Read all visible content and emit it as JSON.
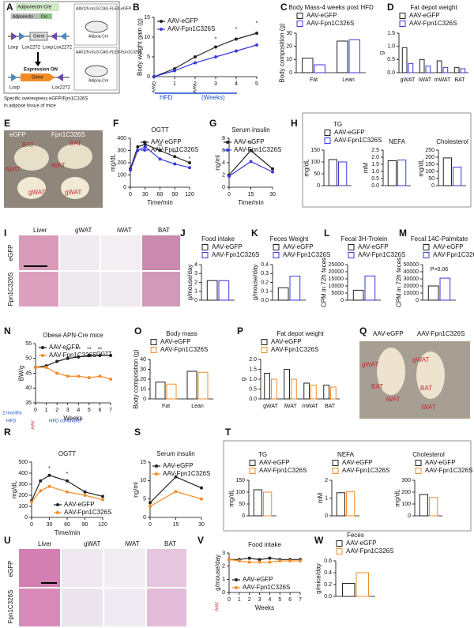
{
  "panels": {
    "A": {
      "letter": "A",
      "cre": "Adiponectin-Cre",
      "promoter": "Adiponectin",
      "cre_gene": "Cre",
      "gene_off": "Gene",
      "loxp1": "Loxp",
      "lox2272a": "Lox2272",
      "loxp2": "Loxp",
      "lox2272b": "Lox2272",
      "expression": "Expression ON",
      "gene_on": "Gene",
      "loxp3": "Loxp",
      "lox2272c": "Lox2272",
      "virus1": "AAV2/9-mU3-CAG-FLEX-eGFP",
      "mouse1": "Adipoq-Cre",
      "virus2": "AAV2/9-mU3-CAG-FLEX-Fpn1C326S",
      "mouse2": "Adipoq-Cre",
      "caption1": "Specific overexpress eGFP/Fpn1C326S",
      "caption2": "in adipose tissue of mice"
    },
    "E": {
      "letter": "E",
      "left": "eGFP",
      "right": "Fpn1C326S",
      "bat1": "BAT",
      "bat2": "BAT",
      "iwat1": "iWAT",
      "iwat2": "iWAT",
      "gwat1": "gWAT",
      "gwat2": "gWAT"
    },
    "I": {
      "letter": "I",
      "columns": [
        "Liver",
        "gWAT",
        "iWAT",
        "BAT"
      ],
      "rows": [
        "eGFP",
        "Fpn1C326S"
      ]
    },
    "Q": {
      "letter": "Q",
      "left": "AAV-eGFP",
      "right": "AAV-Fpn1C326S",
      "gwat1": "gWAT",
      "gwat2": "gWAT",
      "bat1": "BAT",
      "bat2": "BAT",
      "iwat1": "iWAT",
      "iwat2": "iWAT"
    },
    "U": {
      "letter": "U",
      "columns": [
        "Liver",
        "gWAT",
        "iWAT",
        "BAT"
      ],
      "rows": [
        "eGFP",
        "Fpn1C326S"
      ]
    }
  },
  "axis_notes": {
    "b_aav1": "AAV",
    "b_aav2": "AAV",
    "b_hfd": "HFD",
    "b_weeks": "(Weeks)",
    "n_months": "2 months",
    "n_hfd": "HFD",
    "n_aav": "AAV",
    "n_continued": "HFD continued",
    "v_aav": "AAV"
  },
  "chart_data": [
    {
      "panel": "B",
      "type": "line",
      "ylabel": "Body weight gain (g)",
      "x": [
        0,
        1,
        2,
        3,
        4,
        5
      ],
      "xlim": [
        0,
        5
      ],
      "xticks": [
        0,
        1,
        2,
        3,
        4,
        5
      ],
      "ylim": [
        0,
        15
      ],
      "yticks": [
        0,
        5,
        10,
        15
      ],
      "legend": "upper left",
      "series": [
        {
          "name": "AAV-eGFP",
          "color": "#222222",
          "values": [
            0,
            2,
            5,
            7.5,
            9.5,
            11
          ]
        },
        {
          "name": "AAV-Fpn1C326S",
          "color": "#3a3ae0",
          "values": [
            0,
            1.5,
            3.5,
            5,
            6.5,
            8
          ]
        }
      ],
      "annotations": [
        {
          "text": "*",
          "x": 3,
          "y": 9.5
        },
        {
          "text": "*",
          "x": 4,
          "y": 12
        },
        {
          "text": "*",
          "x": 5,
          "y": 13.5
        }
      ]
    },
    {
      "panel": "C",
      "type": "bar",
      "title": "Body Mass-4 weeks post HFD",
      "ylabel": "Body composition (g)",
      "categories": [
        "Fat",
        "Lean"
      ],
      "ylim": [
        0,
        30
      ],
      "yticks": [
        0,
        10,
        20,
        30
      ],
      "legend": "top",
      "series": [
        {
          "name": "AAV-eGFP",
          "color": "#222222",
          "values": [
            11,
            24
          ]
        },
        {
          "name": "AAV-Fpn1C326S",
          "color": "#3a3ae0",
          "values": [
            6,
            25
          ]
        }
      ]
    },
    {
      "panel": "D",
      "type": "bar",
      "title": "Fat depot weight",
      "ylabel": "g",
      "categories": [
        "gWAT",
        "iWAT",
        "mWAT",
        "BAT"
      ],
      "ylim": [
        0,
        1.5
      ],
      "yticks": [
        {
          "value": 0,
          "label": "0.0"
        },
        0.5,
        {
          "value": 1,
          "label": "1.0"
        },
        1.5
      ],
      "legend": "top",
      "series": [
        {
          "name": "AAV-eGFP",
          "color": "#222222",
          "values": [
            0.95,
            0.5,
            0.45,
            0.2
          ]
        },
        {
          "name": "AAV-Fpn1C326S",
          "color": "#3a3ae0",
          "values": [
            0.35,
            0.25,
            0.2,
            0.15
          ]
        }
      ]
    },
    {
      "panel": "F",
      "type": "line",
      "title": "OGTT",
      "ylabel": "mg/dL",
      "xlabel": "Time/min",
      "x": [
        0,
        15,
        30,
        60,
        90,
        120
      ],
      "xlim": [
        0,
        120
      ],
      "xticks": [
        0,
        30,
        60,
        90,
        120
      ],
      "ylim": [
        0,
        400
      ],
      "yticks": [
        0,
        100,
        200,
        300,
        400
      ],
      "legend": "upper right",
      "series": [
        {
          "name": "AAV-eGFP",
          "color": "#222222",
          "values": [
            150,
            330,
            350,
            300,
            250,
            200
          ]
        },
        {
          "name": "AAV-Fpn1C326S",
          "color": "#3a3ae0",
          "values": [
            140,
            300,
            330,
            230,
            190,
            160
          ]
        }
      ],
      "annotations": [
        {
          "text": "**",
          "x": 60,
          "y": 330
        },
        {
          "text": "**",
          "x": 90,
          "y": 280
        },
        {
          "text": "*",
          "x": 120,
          "y": 230
        }
      ]
    },
    {
      "panel": "G",
      "type": "line",
      "title": "Serum insulin",
      "ylabel": "ng/ml",
      "xlabel": "Time/min",
      "x": [
        0,
        15,
        30
      ],
      "xlim": [
        0,
        30
      ],
      "xticks": [
        0,
        15,
        30
      ],
      "ylim": [
        0,
        8
      ],
      "yticks": [
        0,
        2,
        4,
        6,
        8
      ],
      "legend": "upper right",
      "series": [
        {
          "name": "AAV-eGFP",
          "color": "#222222",
          "values": [
            2,
            6,
            3
          ]
        },
        {
          "name": "AAV-Fpn1C326S",
          "color": "#3a3ae0",
          "values": [
            1.8,
            4.2,
            2.5
          ]
        }
      ],
      "annotations": [
        {
          "text": "*",
          "x": 15,
          "y": 7
        }
      ]
    },
    {
      "panel": "H",
      "type": "bar",
      "title": "TG",
      "ylabel": "mg/dL",
      "categories": [
        null
      ],
      "ylim": [
        0,
        150
      ],
      "yticks": [
        0,
        50,
        100,
        150
      ],
      "legend": "top",
      "series": [
        {
          "name": "AAV-eGFP",
          "color": "#222222",
          "values": [
            110
          ]
        },
        {
          "name": "AAV-Fpn1C326S",
          "color": "#3a3ae0",
          "values": [
            100
          ]
        }
      ]
    },
    {
      "type": "bar",
      "title": "NEFA",
      "ylabel": "mM",
      "categories": [
        null
      ],
      "ylim": [
        0,
        2.5
      ],
      "yticks": [
        {
          "value": 0,
          "label": "0.0"
        },
        0.5,
        {
          "value": 1,
          "label": "1.0"
        },
        1.5,
        {
          "value": 2,
          "label": "2.0"
        },
        2.5
      ],
      "series": [
        {
          "color": "#222222",
          "values": [
            1.75
          ]
        },
        {
          "color": "#3a3ae0",
          "values": [
            1.8
          ]
        }
      ]
    },
    {
      "type": "bar",
      "title": "Cholesterol",
      "ylabel": "mg/dL",
      "categories": [
        null
      ],
      "ylim": [
        0,
        250
      ],
      "yticks": [
        0,
        50,
        100,
        150,
        200,
        250
      ],
      "series": [
        {
          "color": "#222222",
          "values": [
            195
          ]
        },
        {
          "color": "#3a3ae0",
          "values": [
            130
          ]
        }
      ]
    },
    {
      "panel": "J",
      "type": "bar",
      "title": "Food intake",
      "ylabel": "g/mouse/day",
      "categories": [
        null
      ],
      "ylim": [
        0,
        4
      ],
      "yticks": [
        0,
        1,
        2,
        3,
        4
      ],
      "legend": "top",
      "series": [
        {
          "name": "AAV-eGFP",
          "color": "#222222",
          "values": [
            2.2
          ]
        },
        {
          "name": "AAV-Fpn1C326S",
          "color": "#3a3ae0",
          "values": [
            2.2
          ]
        }
      ]
    },
    {
      "panel": "K",
      "type": "bar",
      "title": "Feces Weight",
      "ylabel": "g/mouse/day",
      "categories": [
        null
      ],
      "ylim": [
        0,
        0.4
      ],
      "yticks": [
        {
          "value": 0,
          "label": "0.0"
        },
        0.1,
        0.2,
        0.3,
        0.4
      ],
      "legend": "top",
      "series": [
        {
          "name": "AAV-eGFP",
          "color": "#222222",
          "values": [
            0.14
          ]
        },
        {
          "name": "AAV-Fpn1C326S",
          "color": "#3a3ae0",
          "values": [
            0.27
          ]
        }
      ]
    },
    {
      "panel": "L",
      "type": "bar",
      "title": "Fecal 3H-Trolein",
      "ylabel": "CPM in 72h feces",
      "categories": [
        null
      ],
      "ylim": [
        0,
        25000
      ],
      "yticks": [
        0,
        5000,
        10000,
        15000,
        20000,
        25000
      ],
      "legend": "top",
      "series": [
        {
          "name": "AAV-eGFP",
          "color": "#222222",
          "values": [
            7000
          ]
        },
        {
          "name": "AAV-Fpn1C326S",
          "color": "#3a3ae0",
          "values": [
            17000
          ]
        }
      ]
    },
    {
      "panel": "M",
      "type": "bar",
      "title": "Fecal 14C-Palmitate",
      "ylabel": "CPM in 72h feces",
      "categories": [
        null
      ],
      "ylim": [
        0,
        50000
      ],
      "yticks": [
        0,
        10000,
        20000,
        30000,
        40000,
        50000
      ],
      "legend": "top",
      "series": [
        {
          "name": "AAV-eGFP",
          "color": "#222222",
          "values": [
            20000
          ]
        },
        {
          "name": "AAV-Fpn1C326S",
          "color": "#3a3ae0",
          "values": [
            31000
          ]
        }
      ],
      "annotations": [
        {
          "text": "P=0.06",
          "x": 0,
          "y": 43000
        }
      ]
    },
    {
      "panel": "N",
      "type": "line",
      "title": "Obese APN-Cre mice",
      "ylabel": "BW/g",
      "xlabel": "Weeks",
      "x": [
        0,
        1,
        2,
        3,
        4,
        5,
        6,
        7
      ],
      "xlim": [
        0,
        7
      ],
      "xticks": [
        0,
        1,
        2,
        3,
        4,
        5,
        6,
        7
      ],
      "ylim": [
        35,
        55
      ],
      "yticks": [
        35,
        40,
        45,
        50,
        55
      ],
      "legend": "upper left",
      "series": [
        {
          "name": "AAV-eGFP",
          "color": "#222222",
          "values": [
            47,
            47.5,
            49,
            50,
            50.5,
            51,
            51,
            51
          ]
        },
        {
          "name": "AAV-Fpn1C326S",
          "color": "#f28c28",
          "values": [
            47,
            47,
            45,
            44,
            44,
            43.5,
            44,
            43
          ]
        }
      ],
      "annotations": [
        {
          "text": "**",
          "x": 3,
          "y": 52.5
        },
        {
          "text": "**",
          "x": 4,
          "y": 53
        },
        {
          "text": "**",
          "x": 5,
          "y": 53
        },
        {
          "text": "**",
          "x": 6,
          "y": 53
        },
        {
          "text": "OGTT",
          "x": 6.4,
          "y": 51.5,
          "color": "#f28c28"
        }
      ]
    },
    {
      "panel": "O",
      "type": "bar",
      "title": "Body mass",
      "ylabel": "Body composition (g)",
      "categories": [
        "Fat",
        "Lean"
      ],
      "ylim": [
        0,
        40
      ],
      "yticks": [
        0,
        10,
        20,
        30,
        40
      ],
      "legend": "top",
      "series": [
        {
          "name": "AAV-eGFP",
          "color": "#222222",
          "values": [
            17,
            28
          ]
        },
        {
          "name": "AAV-Fpn1C326S",
          "color": "#f28c28",
          "values": [
            15,
            27
          ]
        }
      ]
    },
    {
      "panel": "P",
      "type": "bar",
      "title": "Fat depot weight",
      "ylabel": "g",
      "categories": [
        "gWAT",
        "iWAT",
        "mWAT",
        "BAT"
      ],
      "ylim": [
        0,
        2
      ],
      "yticks": [
        {
          "value": 0,
          "label": "0.0"
        },
        0.5,
        {
          "value": 1,
          "label": "1.0"
        },
        1.5,
        {
          "value": 2,
          "label": "2.0"
        }
      ],
      "legend": "top",
      "series": [
        {
          "name": "AAV-eGFP",
          "color": "#222222",
          "values": [
            1.3,
            1.5,
            0.8,
            0.7
          ]
        },
        {
          "name": "AAV-Fpn1C326S",
          "color": "#f28c28",
          "values": [
            1.0,
            1.0,
            0.7,
            0.6
          ]
        }
      ]
    },
    {
      "panel": "R",
      "type": "line",
      "title": "OGTT",
      "ylabel": "mg/dL",
      "xlabel": "Time/min",
      "x": [
        0,
        15,
        30,
        60,
        90,
        120
      ],
      "xlim": [
        0,
        120
      ],
      "xticks": [
        0,
        30,
        60,
        90,
        120
      ],
      "ylim": [
        0,
        500
      ],
      "yticks": [
        0,
        100,
        200,
        300,
        400,
        500
      ],
      "legend": "lower right",
      "series": [
        {
          "name": "AAV-eGFP",
          "color": "#222222",
          "values": [
            150,
            330,
            380,
            330,
            230,
            190
          ]
        },
        {
          "name": "AAV-Fpn1C326S",
          "color": "#f28c28",
          "values": [
            140,
            240,
            280,
            230,
            200,
            160
          ]
        }
      ],
      "annotations": [
        {
          "text": "*",
          "x": 30,
          "y": 440
        },
        {
          "text": "*",
          "x": 60,
          "y": 390
        }
      ]
    },
    {
      "panel": "S",
      "type": "line",
      "title": "Serum insulin",
      "ylabel": "ng/ml",
      "x": [
        0,
        15,
        30
      ],
      "xlim": [
        0,
        30
      ],
      "xticks": [
        0,
        15,
        30
      ],
      "ylim": [
        0,
        15
      ],
      "yticks": [
        0,
        5,
        10,
        15
      ],
      "legend": "upper right",
      "series": [
        {
          "name": "AAV-eGFP",
          "color": "#222222",
          "values": [
            4,
            11,
            8
          ]
        },
        {
          "name": "AAV-Fpn1C326S",
          "color": "#f28c28",
          "values": [
            3,
            7,
            5
          ]
        }
      ]
    },
    {
      "panel": "T",
      "type": "bar",
      "title": "TG",
      "ylabel": "mg/dL",
      "categories": [
        null
      ],
      "ylim": [
        0,
        150
      ],
      "yticks": [
        0,
        50,
        100,
        150
      ],
      "legend": "top",
      "series": [
        {
          "name": "AAV-eGFP",
          "color": "#222222",
          "values": [
            110
          ]
        },
        {
          "name": "AAV-Fpn1C326S",
          "color": "#f28c28",
          "values": [
            100
          ]
        }
      ]
    },
    {
      "type": "bar",
      "title": "NEFA",
      "ylabel": "mM",
      "categories": [
        null
      ],
      "ylim": [
        0,
        2
      ],
      "yticks": [
        0,
        1,
        2
      ],
      "legend": "top",
      "series": [
        {
          "name": "AAV-eGFP",
          "color": "#222222",
          "values": [
            1.3
          ]
        },
        {
          "name": "AAV-Fpn1C326S",
          "color": "#f28c28",
          "values": [
            1.35
          ]
        }
      ]
    },
    {
      "type": "bar",
      "title": "Cholesterol",
      "ylabel": "mg/dL",
      "categories": [
        null
      ],
      "ylim": [
        0,
        300
      ],
      "yticks": [
        0,
        100,
        200,
        300
      ],
      "legend": "top",
      "series": [
        {
          "name": "AAV-eGFP",
          "color": "#222222",
          "values": [
            180
          ]
        },
        {
          "name": "AAV-Fpn1C326S",
          "color": "#f28c28",
          "values": [
            155
          ]
        }
      ]
    },
    {
      "panel": "V",
      "type": "line",
      "title": "Food intake",
      "ylabel": "g/mouse/day",
      "xlabel": "Weeks",
      "x": [
        0,
        1,
        2,
        3,
        4,
        5,
        6,
        7
      ],
      "xlim": [
        0,
        7
      ],
      "xticks": [
        0,
        1,
        2,
        3,
        4,
        5,
        6,
        7
      ],
      "ylim": [
        0,
        3
      ],
      "yticks": [
        0,
        1,
        2,
        3
      ],
      "legend": "lower left",
      "series": [
        {
          "name": "AAV-eGFP",
          "color": "#222222",
          "values": [
            2.5,
            2.5,
            2.6,
            2.5,
            2.6,
            2.5,
            2.5,
            2.5
          ]
        },
        {
          "name": "AAV-Fpn1C326S",
          "color": "#f28c28",
          "values": [
            2.5,
            2.4,
            2.3,
            2.3,
            2.3,
            2.4,
            2.4,
            2.4
          ]
        }
      ]
    },
    {
      "panel": "W",
      "type": "bar",
      "title": "Feces",
      "ylabel": "g/mice/day",
      "categories": [
        null
      ],
      "ylim": [
        0,
        0.6
      ],
      "yticks": [
        {
          "value": 0,
          "label": "0.0"
        },
        0.2,
        0.4,
        0.6
      ],
      "legend": "top",
      "series": [
        {
          "name": "AAV-eGFP",
          "color": "#222222",
          "values": [
            0.22
          ]
        },
        {
          "name": "AAV-Fpn1C326S",
          "color": "#f28c28",
          "values": [
            0.4
          ]
        }
      ]
    }
  ]
}
